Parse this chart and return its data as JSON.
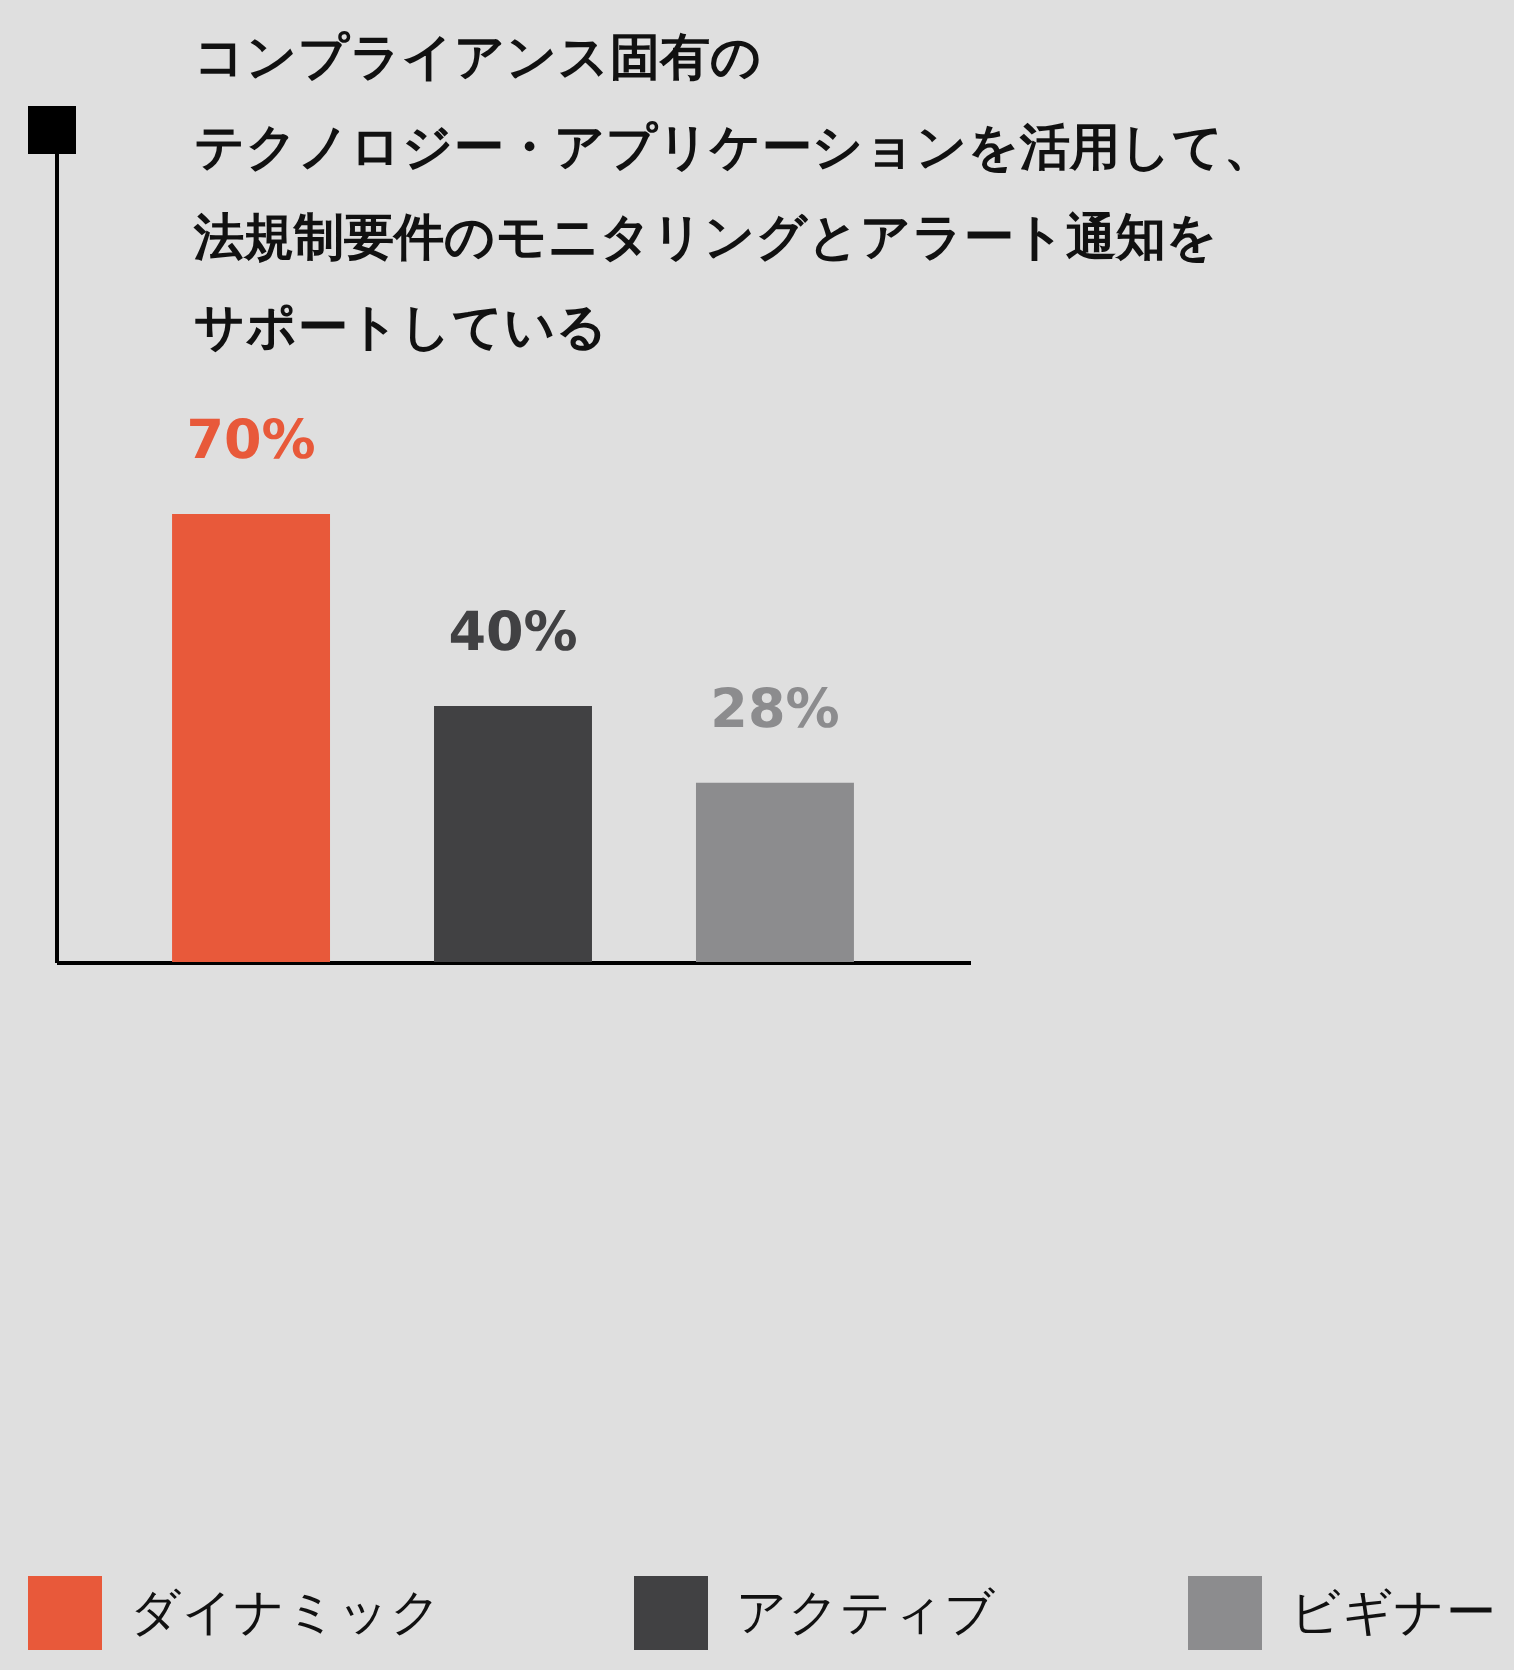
{
  "chart_data": {
    "type": "bar",
    "title": "コンプライアンス固有のテクノロジー・アプリケーションを活用して、法規制要件のモニタリングとアラート通知をサポートしている",
    "categories": [
      null,
      null,
      null
    ],
    "stacked": true,
    "series": [
      {
        "name": "ダイナミック",
        "color": "#e8593a",
        "values": [
          70,
          null,
          null
        ],
        "value_labels": [
          "70%",
          null,
          null
        ]
      },
      {
        "name": "アクティブ",
        "color": "#414143",
        "values": [
          null,
          40,
          null
        ],
        "value_labels": [
          null,
          "40%",
          null
        ]
      },
      {
        "name": "ビギナー",
        "color": "#8c8c8e",
        "values": [
          null,
          null,
          28
        ],
        "value_labels": [
          null,
          null,
          "28%"
        ]
      }
    ],
    "ylim": [
      0,
      130
    ],
    "legend": "bottom"
  }
}
